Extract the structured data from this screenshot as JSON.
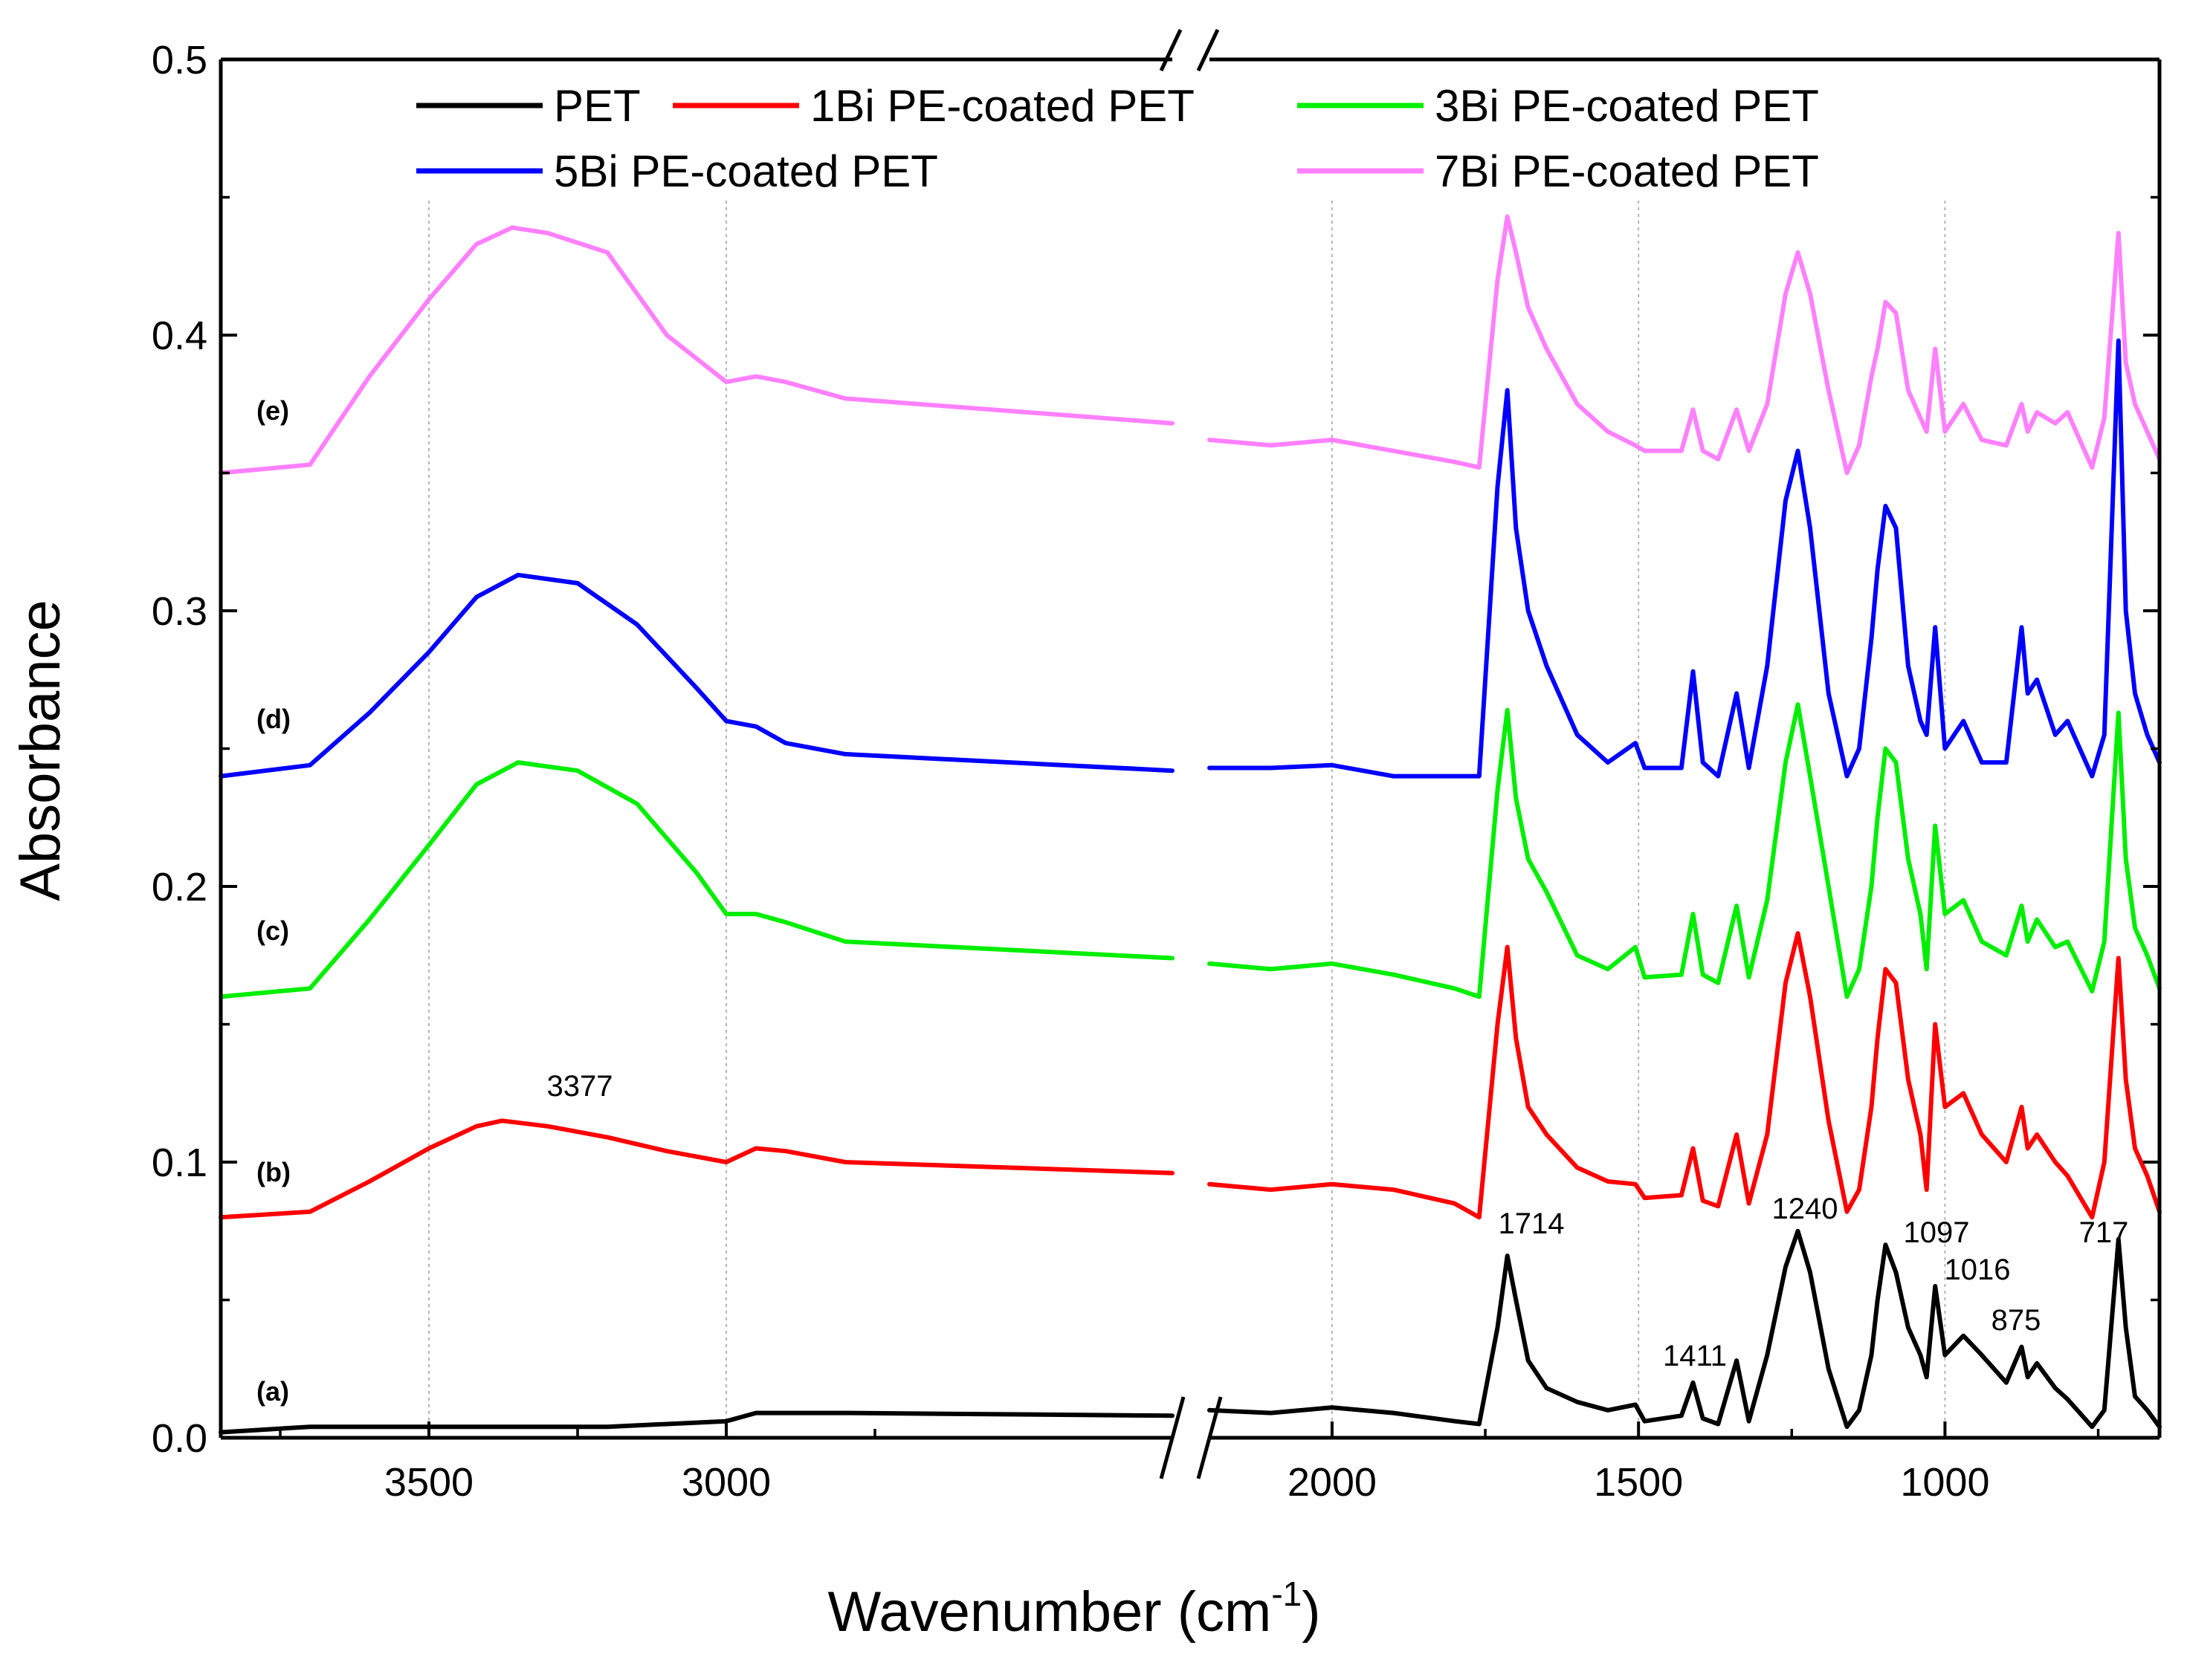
{
  "chart_data": {
    "type": "line",
    "title": "",
    "xlabel": "Wavenumber (cm",
    "xlabel_superscript": "-1",
    "xlabel_close": ")",
    "ylabel": "Absorbance",
    "xaxis_break": [
      2250,
      2200
    ],
    "xlim_left": [
      3850,
      2250
    ],
    "xlim_right": [
      2200,
      650
    ],
    "ylim": [
      0,
      0.5
    ],
    "yticks": [
      "0.0",
      "0.1",
      "0.2",
      "0.3",
      "0.4",
      "0.5"
    ],
    "xticks_left": [
      "3500",
      "3000"
    ],
    "xticks_right": [
      "2000",
      "1500",
      "1000"
    ],
    "grid": "vertical dotted lines at major x ticks",
    "legend_position": "top",
    "series": [
      {
        "name": "PET",
        "label": "(a)",
        "color": "#000000",
        "x_left": [
          3850,
          3700,
          3500,
          3377,
          3200,
          3000,
          2950,
          2900,
          2800,
          2250
        ],
        "y_left": [
          0.002,
          0.004,
          0.004,
          0.004,
          0.004,
          0.006,
          0.009,
          0.009,
          0.009,
          0.008
        ],
        "x_right": [
          2200,
          2100,
          2000,
          1900,
          1800,
          1760,
          1730,
          1714,
          1700,
          1680,
          1650,
          1600,
          1550,
          1505,
          1490,
          1430,
          1411,
          1395,
          1370,
          1340,
          1320,
          1290,
          1260,
          1240,
          1220,
          1190,
          1160,
          1140,
          1120,
          1110,
          1097,
          1080,
          1060,
          1040,
          1030,
          1016,
          1000,
          970,
          940,
          900,
          875,
          865,
          850,
          820,
          800,
          760,
          740,
          717,
          705,
          690,
          670,
          650
        ],
        "y_right": [
          0.01,
          0.009,
          0.011,
          0.009,
          0.006,
          0.005,
          0.04,
          0.066,
          0.05,
          0.028,
          0.018,
          0.013,
          0.01,
          0.012,
          0.006,
          0.008,
          0.02,
          0.007,
          0.005,
          0.028,
          0.006,
          0.03,
          0.062,
          0.075,
          0.06,
          0.025,
          0.004,
          0.01,
          0.03,
          0.05,
          0.07,
          0.06,
          0.04,
          0.03,
          0.022,
          0.055,
          0.03,
          0.037,
          0.03,
          0.02,
          0.033,
          0.022,
          0.027,
          0.018,
          0.014,
          0.004,
          0.01,
          0.072,
          0.04,
          0.015,
          0.01,
          0.004
        ]
      },
      {
        "name": "1Bi PE-coated PET",
        "label": "(b)",
        "color": "#ff0000",
        "x_left": [
          3850,
          3700,
          3600,
          3500,
          3420,
          3377,
          3300,
          3200,
          3100,
          3000,
          2950,
          2900,
          2800,
          2250
        ],
        "y_left": [
          0.08,
          0.082,
          0.093,
          0.105,
          0.113,
          0.115,
          0.113,
          0.109,
          0.104,
          0.1,
          0.105,
          0.104,
          0.1,
          0.096
        ],
        "x_right": [
          2200,
          2100,
          2000,
          1900,
          1800,
          1760,
          1730,
          1714,
          1700,
          1680,
          1650,
          1600,
          1550,
          1505,
          1490,
          1430,
          1411,
          1395,
          1370,
          1340,
          1320,
          1290,
          1260,
          1240,
          1220,
          1190,
          1160,
          1140,
          1120,
          1110,
          1097,
          1080,
          1060,
          1040,
          1030,
          1016,
          1000,
          970,
          940,
          900,
          875,
          865,
          850,
          820,
          800,
          760,
          740,
          717,
          705,
          690,
          670,
          650
        ],
        "y_right": [
          0.092,
          0.09,
          0.092,
          0.09,
          0.085,
          0.08,
          0.15,
          0.178,
          0.145,
          0.12,
          0.11,
          0.098,
          0.093,
          0.092,
          0.087,
          0.088,
          0.105,
          0.086,
          0.084,
          0.11,
          0.085,
          0.11,
          0.165,
          0.183,
          0.16,
          0.115,
          0.082,
          0.09,
          0.12,
          0.145,
          0.17,
          0.165,
          0.13,
          0.11,
          0.09,
          0.15,
          0.12,
          0.125,
          0.11,
          0.1,
          0.12,
          0.105,
          0.11,
          0.1,
          0.095,
          0.08,
          0.1,
          0.174,
          0.13,
          0.105,
          0.095,
          0.082
        ]
      },
      {
        "name": "3Bi PE-coated PET",
        "label": "(c)",
        "color": "#00ee00",
        "x_left": [
          3850,
          3700,
          3600,
          3500,
          3420,
          3350,
          3250,
          3150,
          3050,
          3000,
          2950,
          2900,
          2800,
          2250
        ],
        "y_left": [
          0.16,
          0.163,
          0.188,
          0.215,
          0.237,
          0.245,
          0.242,
          0.23,
          0.205,
          0.19,
          0.19,
          0.187,
          0.18,
          0.174
        ],
        "x_right": [
          2200,
          2100,
          2000,
          1900,
          1800,
          1760,
          1730,
          1714,
          1700,
          1680,
          1650,
          1600,
          1550,
          1505,
          1490,
          1430,
          1411,
          1395,
          1370,
          1340,
          1320,
          1290,
          1260,
          1240,
          1220,
          1190,
          1160,
          1140,
          1120,
          1110,
          1097,
          1080,
          1060,
          1040,
          1030,
          1016,
          1000,
          970,
          940,
          900,
          875,
          865,
          850,
          820,
          800,
          760,
          740,
          717,
          705,
          690,
          670,
          650
        ],
        "y_right": [
          0.172,
          0.17,
          0.172,
          0.168,
          0.163,
          0.16,
          0.235,
          0.264,
          0.232,
          0.21,
          0.198,
          0.175,
          0.17,
          0.178,
          0.167,
          0.168,
          0.19,
          0.168,
          0.165,
          0.193,
          0.167,
          0.195,
          0.245,
          0.266,
          0.24,
          0.2,
          0.16,
          0.17,
          0.2,
          0.225,
          0.25,
          0.245,
          0.21,
          0.19,
          0.17,
          0.222,
          0.19,
          0.195,
          0.18,
          0.175,
          0.193,
          0.18,
          0.188,
          0.178,
          0.18,
          0.162,
          0.18,
          0.263,
          0.21,
          0.185,
          0.175,
          0.163
        ]
      },
      {
        "name": "5Bi PE-coated PET",
        "label": "(d)",
        "color": "#0000ff",
        "x_left": [
          3850,
          3700,
          3600,
          3500,
          3420,
          3350,
          3250,
          3150,
          3050,
          3000,
          2950,
          2900,
          2800,
          2250
        ],
        "y_left": [
          0.24,
          0.244,
          0.263,
          0.285,
          0.305,
          0.313,
          0.31,
          0.295,
          0.272,
          0.26,
          0.258,
          0.252,
          0.248,
          0.242
        ],
        "x_right": [
          2200,
          2100,
          2000,
          1900,
          1800,
          1760,
          1730,
          1714,
          1700,
          1680,
          1650,
          1600,
          1550,
          1505,
          1490,
          1430,
          1411,
          1395,
          1370,
          1340,
          1320,
          1290,
          1260,
          1240,
          1220,
          1190,
          1160,
          1140,
          1120,
          1110,
          1097,
          1080,
          1060,
          1040,
          1030,
          1016,
          1000,
          970,
          940,
          900,
          875,
          865,
          850,
          820,
          800,
          760,
          740,
          717,
          705,
          690,
          670,
          650
        ],
        "y_right": [
          0.243,
          0.243,
          0.244,
          0.24,
          0.24,
          0.24,
          0.345,
          0.38,
          0.33,
          0.3,
          0.28,
          0.255,
          0.245,
          0.252,
          0.243,
          0.243,
          0.278,
          0.245,
          0.24,
          0.27,
          0.243,
          0.28,
          0.34,
          0.358,
          0.33,
          0.27,
          0.24,
          0.25,
          0.29,
          0.315,
          0.338,
          0.33,
          0.28,
          0.26,
          0.255,
          0.294,
          0.25,
          0.26,
          0.245,
          0.245,
          0.294,
          0.27,
          0.275,
          0.255,
          0.26,
          0.24,
          0.255,
          0.398,
          0.3,
          0.27,
          0.255,
          0.245
        ]
      },
      {
        "name": "7Bi PE-coated PET",
        "label": "(e)",
        "color": "#ff80ff",
        "x_left": [
          3850,
          3700,
          3600,
          3500,
          3420,
          3360,
          3300,
          3200,
          3100,
          3000,
          2950,
          2900,
          2800,
          2250
        ],
        "y_left": [
          0.35,
          0.353,
          0.385,
          0.413,
          0.433,
          0.439,
          0.437,
          0.43,
          0.4,
          0.383,
          0.385,
          0.383,
          0.377,
          0.368
        ],
        "x_right": [
          2200,
          2100,
          2000,
          1900,
          1800,
          1760,
          1730,
          1714,
          1700,
          1680,
          1650,
          1600,
          1550,
          1505,
          1490,
          1430,
          1411,
          1395,
          1370,
          1340,
          1320,
          1290,
          1260,
          1240,
          1220,
          1190,
          1160,
          1140,
          1120,
          1110,
          1097,
          1080,
          1060,
          1040,
          1030,
          1016,
          1000,
          970,
          940,
          900,
          875,
          865,
          850,
          820,
          800,
          760,
          740,
          717,
          705,
          690,
          670,
          650
        ],
        "y_right": [
          0.362,
          0.36,
          0.362,
          0.358,
          0.354,
          0.352,
          0.42,
          0.443,
          0.43,
          0.41,
          0.395,
          0.375,
          0.365,
          0.36,
          0.358,
          0.358,
          0.373,
          0.358,
          0.355,
          0.373,
          0.358,
          0.375,
          0.415,
          0.43,
          0.415,
          0.38,
          0.35,
          0.36,
          0.385,
          0.395,
          0.412,
          0.408,
          0.38,
          0.37,
          0.365,
          0.395,
          0.365,
          0.375,
          0.362,
          0.36,
          0.375,
          0.365,
          0.372,
          0.368,
          0.372,
          0.352,
          0.37,
          0.437,
          0.39,
          0.375,
          0.365,
          0.355
        ]
      }
    ],
    "annotations": [
      {
        "text": "3377",
        "x": 3377,
        "y": 0.115
      },
      {
        "text": "1714",
        "x": 1714,
        "y": 0.066
      },
      {
        "text": "1411",
        "x": 1411,
        "y": 0.02
      },
      {
        "text": "1240",
        "x": 1240,
        "y": 0.075
      },
      {
        "text": "1097",
        "x": 1097,
        "y": 0.07
      },
      {
        "text": "1016",
        "x": 1016,
        "y": 0.055
      },
      {
        "text": "875",
        "x": 875,
        "y": 0.033
      },
      {
        "text": "717",
        "x": 717,
        "y": 0.072
      }
    ]
  }
}
